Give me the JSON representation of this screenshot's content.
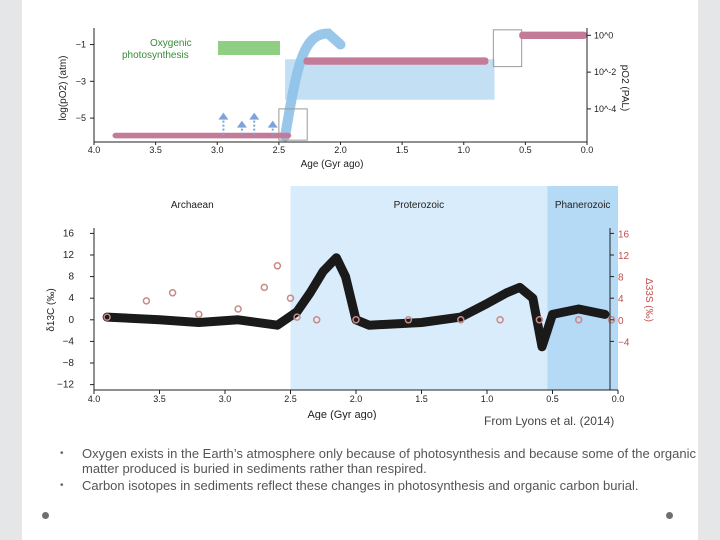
{
  "chart_data": [
    {
      "type": "area",
      "ylabel": "log(pO2) (atm)",
      "y2label": "pO2 (PAL)",
      "xlabel": "Age (Gyr ago)",
      "xlim": [
        4.0,
        0.0
      ],
      "ylim": [
        -6.3,
        -0.1
      ],
      "x_ticks": [
        "4.0",
        "3.5",
        "3.0",
        "2.5",
        "2.0",
        "1.5",
        "1.0",
        "0.5",
        "0.0"
      ],
      "y_ticks": [
        "-1",
        "-3",
        "-5"
      ],
      "y2_ticks": [
        "10^0",
        "10^-2",
        "10^-4"
      ],
      "annotation": {
        "line1": "Oxygenic",
        "line2": "photosynthesis"
      },
      "series": [
        {
          "values_x": [
            3.85,
            2.4
          ],
          "band_low": [
            -6.1,
            -6.1
          ],
          "band_high": [
            -5.8,
            -5.8
          ],
          "color": "#c47b98"
        },
        {
          "values_x": [
            2.3,
            0.8
          ],
          "band_low": [
            -2.1,
            -2.1
          ],
          "band_high": [
            -1.7,
            -1.7
          ],
          "color": "#c47b98"
        },
        {
          "values_x": [
            0.55,
            0.0
          ],
          "band_low": [
            -0.7,
            -0.7
          ],
          "band_high": [
            -0.3,
            -0.3
          ],
          "color": "#c47b98"
        }
      ],
      "blue_band": {
        "x": [
          2.45,
          0.75
        ],
        "low": -4.0,
        "high": -1.8
      },
      "arrows_x": [
        2.95,
        2.8,
        2.7,
        2.55
      ]
    },
    {
      "type": "line",
      "xlabel": "Age (Gyr ago)",
      "ylabel": "δ13C (‰)",
      "y2label": "Δ33S (‰)",
      "xlim": [
        4.0,
        0.0
      ],
      "ylim": [
        -13,
        17
      ],
      "x_ticks": [
        "4.0",
        "3.5",
        "3.0",
        "2.5",
        "2.0",
        "1.5",
        "1.0",
        "0.5",
        "0.0"
      ],
      "y_ticks": [
        "16",
        "12",
        "8",
        "4",
        "0",
        "-4",
        "-8",
        "-12"
      ],
      "y2_ticks": [
        "16",
        "12",
        "8",
        "4",
        "0",
        "-4"
      ],
      "eons": [
        {
          "name": "Archaean",
          "from": 4.0,
          "to": 2.5
        },
        {
          "name": "Proterozoic",
          "from": 2.5,
          "to": 0.54
        },
        {
          "name": "Phanerozoic",
          "from": 0.54,
          "to": 0.0
        }
      ],
      "carbon_x": [
        3.9,
        3.5,
        3.2,
        2.9,
        2.6,
        2.45,
        2.35,
        2.25,
        2.15,
        2.08,
        2.0,
        1.9,
        1.5,
        1.2,
        1.0,
        0.85,
        0.75,
        0.65,
        0.58,
        0.5,
        0.3,
        0.1
      ],
      "carbon_y": [
        0.5,
        0,
        -0.5,
        0,
        -1,
        1.5,
        5,
        9,
        11.5,
        8,
        0,
        -1,
        -0.5,
        0.5,
        3,
        5,
        6,
        4,
        -5,
        1,
        2,
        1
      ],
      "sulfur_x": [
        3.9,
        3.6,
        3.4,
        3.2,
        2.9,
        2.7,
        2.6,
        2.5,
        2.45,
        2.3,
        2.0,
        1.6,
        1.2,
        0.9,
        0.6,
        0.3,
        0.05
      ],
      "sulfur_y": [
        0.5,
        3.5,
        5,
        1,
        2,
        6,
        10,
        4,
        0.5,
        0,
        0,
        0,
        0,
        0,
        0,
        0,
        0
      ]
    }
  ],
  "caption": "From Lyons et al. (2014)",
  "bullets": [
    "Oxygen exists in the Earth’s atmosphere only because of photosynthesis and because some of the organic matter produced is buried in sediments rather than respired.",
    "Carbon isotopes in sediments reflect these changes in photosynthesis and organic carbon burial."
  ]
}
